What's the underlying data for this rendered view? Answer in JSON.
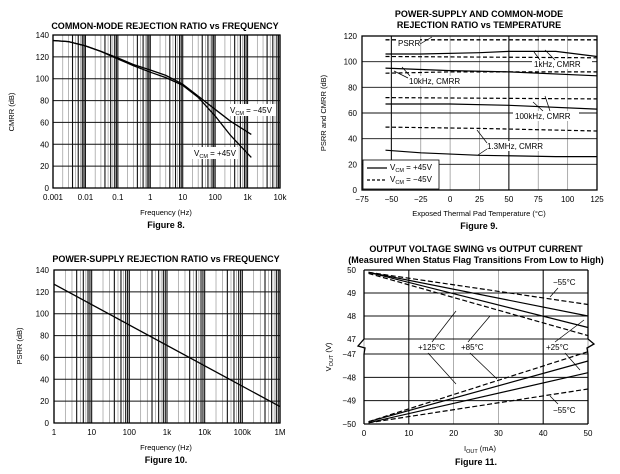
{
  "chart_data": [
    {
      "id": "fig8",
      "type": "line",
      "title": "COMMON-MODE REJECTION RATIO vs FREQUENCY",
      "xlabel": "Frequency (Hz)",
      "ylabel": "CMRR (dB)",
      "caption": "Figure 8.",
      "xscale": "log",
      "xlim": [
        0.001,
        10000
      ],
      "ylim": [
        0,
        140
      ],
      "xticks": [
        0.001,
        0.01,
        0.1,
        1,
        10,
        100,
        1000,
        10000
      ],
      "xtick_labels": [
        "0.001",
        "0.01",
        "0.1",
        "1",
        "10",
        "100",
        "1k",
        "10k"
      ],
      "yticks": [
        0,
        20,
        40,
        60,
        80,
        100,
        120,
        140
      ],
      "ytick_labels": [
        "0",
        "20",
        "40",
        "60",
        "80",
        "100",
        "120",
        "140"
      ],
      "grid": true,
      "series": [
        {
          "name": "VCM = −45V",
          "style": "solid",
          "x": [
            0.001,
            0.003,
            0.01,
            0.03,
            0.1,
            0.3,
            1,
            3,
            10,
            30,
            100,
            300,
            1300
          ],
          "y": [
            135,
            134,
            130,
            125,
            119,
            113,
            108,
            103,
            95,
            84,
            72,
            61,
            49
          ]
        },
        {
          "name": "VCM = +45V",
          "style": "solid",
          "x": [
            0.001,
            0.003,
            0.01,
            0.03,
            0.1,
            0.3,
            1,
            3,
            10,
            30,
            100,
            300,
            1300
          ],
          "y": [
            135,
            134,
            130,
            125,
            118,
            112,
            106,
            101,
            94,
            83,
            66,
            48,
            28
          ]
        }
      ],
      "annotations": [
        {
          "text_main": "V",
          "text_sub": "CM",
          "text_rest": " = −45V"
        },
        {
          "text_main": "V",
          "text_sub": "CM",
          "text_rest": " = +45V"
        }
      ]
    },
    {
      "id": "fig9",
      "type": "line",
      "title": "POWER-SUPPLY AND COMMON-MODE",
      "title2": "REJECTION RATIO vs TEMPERATURE",
      "xlabel": "Exposed Thermal Pad Temperature (°C)",
      "ylabel": "PSRR and CMRR (dB)",
      "caption": "Figure 9.",
      "xlim": [
        -75,
        125
      ],
      "ylim": [
        0,
        120
      ],
      "xticks": [
        -75,
        -50,
        -25,
        0,
        25,
        50,
        75,
        100,
        125
      ],
      "xtick_labels": [
        "−75",
        "−50",
        "−25",
        "0",
        "25",
        "50",
        "75",
        "100",
        "125"
      ],
      "yticks": [
        0,
        20,
        40,
        60,
        80,
        100,
        120
      ],
      "ytick_labels": [
        "0",
        "20",
        "40",
        "60",
        "80",
        "100",
        "120"
      ],
      "grid": true,
      "legend": {
        "placement": "bottom-left",
        "entries": [
          {
            "label_main": "V",
            "label_sub": "CM",
            "label_rest": " = +45V",
            "style": "solid"
          },
          {
            "label_main": "V",
            "label_sub": "CM",
            "label_rest": " = −45V",
            "style": "dashed"
          }
        ]
      },
      "series": [
        {
          "name": "PSRR",
          "style": "dashed",
          "x": [
            -55,
            125
          ],
          "y": [
            117,
            117
          ]
        },
        {
          "name": "1kHz CMRR +45V",
          "style": "solid",
          "x": [
            -55,
            -25,
            25,
            50,
            90,
            125
          ],
          "y": [
            106,
            106,
            107,
            108,
            108,
            104
          ]
        },
        {
          "name": "1kHz CMRR -45V",
          "style": "dashed",
          "x": [
            -55,
            125
          ],
          "y": [
            104,
            103
          ]
        },
        {
          "name": "10kHz CMRR +45V",
          "style": "solid",
          "x": [
            -55,
            0,
            50,
            125
          ],
          "y": [
            95,
            93,
            92,
            89
          ]
        },
        {
          "name": "10kHz CMRR -45V",
          "style": "dashed",
          "x": [
            -55,
            0,
            50,
            125
          ],
          "y": [
            91,
            92,
            92,
            92
          ]
        },
        {
          "name": "100kHz CMRR +45V",
          "style": "solid",
          "x": [
            -55,
            0,
            50,
            125
          ],
          "y": [
            67,
            67,
            66,
            63
          ]
        },
        {
          "name": "100kHz CMRR -45V",
          "style": "dashed",
          "x": [
            -55,
            125
          ],
          "y": [
            72,
            71
          ]
        },
        {
          "name": "1.3MHz CMRR +45V",
          "style": "solid",
          "x": [
            -55,
            -25,
            25,
            90,
            125
          ],
          "y": [
            31,
            29,
            27,
            26,
            26
          ]
        },
        {
          "name": "1.3MHz CMRR -45V",
          "style": "dashed",
          "x": [
            -55,
            25,
            125
          ],
          "y": [
            49,
            48,
            46
          ]
        }
      ],
      "annotations": [
        "PSRR",
        "1kHz, CMRR",
        "10kHz, CMRR",
        "100kHz, CMRR",
        "1.3MHz, CMRR"
      ]
    },
    {
      "id": "fig10",
      "type": "line",
      "title": "POWER-SUPPLY REJECTION RATIO vs FREQUENCY",
      "xlabel": "Frequency (Hz)",
      "ylabel": "PSRR (dB)",
      "caption": "Figure 10.",
      "xscale": "log",
      "xlim": [
        1,
        1000000
      ],
      "ylim": [
        0,
        140
      ],
      "xticks": [
        1,
        10,
        100,
        1000,
        10000,
        100000,
        1000000
      ],
      "xtick_labels": [
        "1",
        "10",
        "100",
        "1k",
        "10k",
        "100k",
        "1M"
      ],
      "yticks": [
        0,
        20,
        40,
        60,
        80,
        100,
        120,
        140
      ],
      "ytick_labels": [
        "0",
        "20",
        "40",
        "60",
        "80",
        "100",
        "120",
        "140"
      ],
      "grid": true,
      "series": [
        {
          "name": "PSRR",
          "style": "solid",
          "x": [
            1,
            1000000
          ],
          "y": [
            127,
            15
          ]
        }
      ]
    },
    {
      "id": "fig11",
      "type": "line",
      "title": "OUTPUT VOLTAGE SWING vs OUTPUT CURRENT",
      "title2": "(Measured When Status Flag Transitions From Low to High)",
      "xlabel_main": "I",
      "xlabel_sub": "OUT",
      "xlabel_rest": " (mA)",
      "ylabel_main": "V",
      "ylabel_sub": "OUT",
      "ylabel_rest": " (V)",
      "caption": "Figure 11.",
      "xlim": [
        0,
        50
      ],
      "ylim_upper": [
        47,
        50
      ],
      "ylim_lower": [
        -50,
        -47
      ],
      "xticks": [
        0,
        10,
        20,
        30,
        40,
        50
      ],
      "xtick_labels": [
        "0",
        "10",
        "20",
        "30",
        "40",
        "50"
      ],
      "yticks_upper": [
        47,
        48,
        49,
        50
      ],
      "ytick_labels_upper": [
        "47",
        "48",
        "49",
        "50"
      ],
      "yticks_lower": [
        -50,
        -49,
        -48,
        -47
      ],
      "ytick_labels_lower": [
        "−50",
        "−49",
        "−48",
        "−47"
      ],
      "grid": true,
      "axis_break": true,
      "series": [
        {
          "name": "-55°C high",
          "style": "dashed",
          "x": [
            1,
            50
          ],
          "y": [
            49.9,
            48.5
          ]
        },
        {
          "name": "+25°C high",
          "style": "solid",
          "x": [
            1,
            50
          ],
          "y": [
            49.9,
            48.0
          ]
        },
        {
          "name": "+85°C high",
          "style": "solid",
          "x": [
            1,
            50
          ],
          "y": [
            49.9,
            47.5
          ]
        },
        {
          "name": "+125°C high",
          "style": "dashed",
          "x": [
            1,
            50
          ],
          "y": [
            49.85,
            47.15
          ]
        },
        {
          "name": "+125°C low",
          "style": "dashed",
          "x": [
            1,
            50
          ],
          "y": [
            -49.9,
            -46.9
          ]
        },
        {
          "name": "+85°C low",
          "style": "solid",
          "x": [
            1,
            50
          ],
          "y": [
            -49.9,
            -47.3
          ]
        },
        {
          "name": "+25°C low",
          "style": "solid",
          "x": [
            1,
            50
          ],
          "y": [
            -49.95,
            -47.8
          ]
        },
        {
          "name": "-55°C low",
          "style": "dashed",
          "x": [
            1,
            50
          ],
          "y": [
            -49.95,
            -48.5
          ]
        }
      ],
      "annotations": [
        "−55°C",
        "+125°C",
        "+85°C",
        "+25°C",
        "−55°C"
      ]
    }
  ]
}
